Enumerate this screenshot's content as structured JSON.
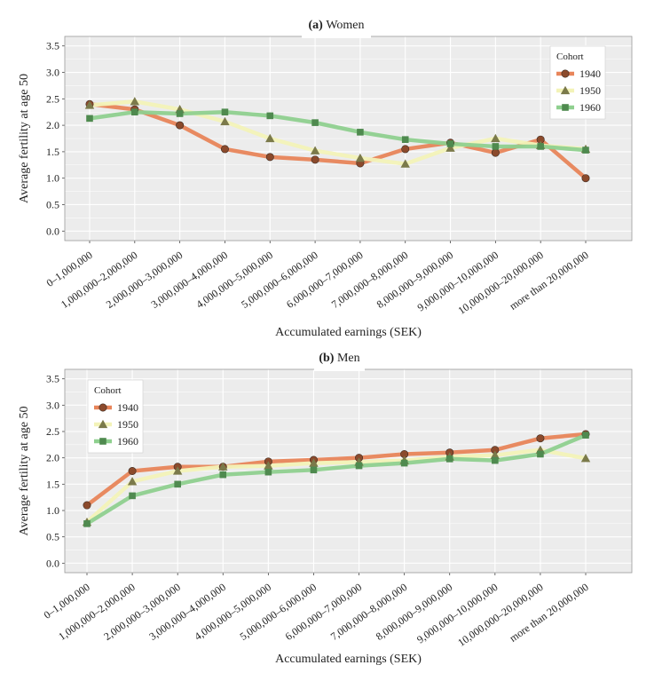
{
  "colors": {
    "panel_bg": "#ececec",
    "grid": "#ffffff",
    "c1940": "#e8855a",
    "c1950": "#f3f3b8",
    "c1960": "#8fd08f",
    "m1940": "#8b4a2c",
    "m1950": "#7b7a4a",
    "m1960": "#4f8a4f"
  },
  "chart_data": [
    {
      "type": "line",
      "title": "(a) Women",
      "xlabel": "Accumulated earnings (SEK)",
      "ylabel": "Average fertility at age 50",
      "ylim": [
        0,
        3.5
      ],
      "yticks": [
        "0.0",
        "0.5",
        "1.0",
        "1.5",
        "2.0",
        "2.5",
        "3.0",
        "3.5"
      ],
      "legend": {
        "title": "Cohort",
        "placement": "top-right"
      },
      "categories": [
        "0–1,000,000",
        "1,000,000–2,000,000",
        "2,000,000–3,000,000",
        "3,000,000–4,000,000",
        "4,000,000–5,000,000",
        "5,000,000–6,000,000",
        "6,000,000–7,000,000",
        "7,000,000–8,000,000",
        "8,000,000–9,000,000",
        "9,000,000–10,000,000",
        "10,000,000–20,000,000",
        "more than 20,000,000"
      ],
      "series": [
        {
          "name": "1940",
          "values": [
            2.4,
            2.3,
            2.0,
            1.55,
            1.4,
            1.35,
            1.28,
            1.55,
            1.67,
            1.48,
            1.73,
            1.0
          ]
        },
        {
          "name": "1950",
          "values": [
            2.38,
            2.45,
            2.3,
            2.07,
            1.75,
            1.52,
            1.38,
            1.27,
            1.57,
            1.75,
            1.62,
            1.55
          ]
        },
        {
          "name": "1960",
          "values": [
            2.13,
            2.25,
            2.22,
            2.25,
            2.18,
            2.05,
            1.87,
            1.73,
            1.65,
            1.6,
            1.6,
            1.53
          ]
        }
      ]
    },
    {
      "type": "line",
      "title": "(b) Men",
      "xlabel": "Accumulated earnings (SEK)",
      "ylabel": "Average fertility at age 50",
      "ylim": [
        0,
        3.5
      ],
      "yticks": [
        "0.0",
        "0.5",
        "1.0",
        "1.5",
        "2.0",
        "2.5",
        "3.0",
        "3.5"
      ],
      "legend": {
        "title": "Cohort",
        "placement": "top-left"
      },
      "categories": [
        "0–1,000,000",
        "1,000,000–2,000,000",
        "2,000,000–3,000,000",
        "3,000,000–4,000,000",
        "4,000,000–5,000,000",
        "5,000,000–6,000,000",
        "6,000,000–7,000,000",
        "7,000,000–8,000,000",
        "8,000,000–9,000,000",
        "9,000,000–10,000,000",
        "10,000,000–20,000,000",
        "more than 20,000,000"
      ],
      "series": [
        {
          "name": "1940",
          "values": [
            1.1,
            1.75,
            1.83,
            1.83,
            1.93,
            1.96,
            2.0,
            2.07,
            2.1,
            2.15,
            2.37,
            2.45
          ]
        },
        {
          "name": "1950",
          "values": [
            0.78,
            1.55,
            1.75,
            1.83,
            1.85,
            1.9,
            1.92,
            1.95,
            2.02,
            2.05,
            2.15,
            1.99
          ]
        },
        {
          "name": "1960",
          "values": [
            0.75,
            1.28,
            1.5,
            1.68,
            1.73,
            1.77,
            1.85,
            1.9,
            1.98,
            1.95,
            2.07,
            2.43
          ]
        }
      ]
    }
  ]
}
